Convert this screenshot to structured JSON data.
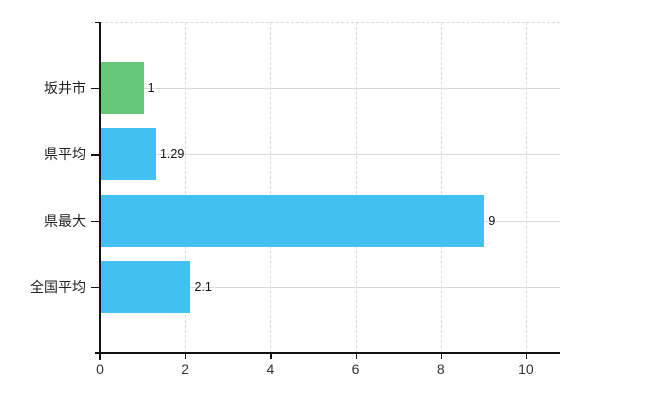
{
  "chart_data": {
    "type": "bar",
    "orientation": "horizontal",
    "title": "",
    "xlabel": "",
    "ylabel": "",
    "categories": [
      "坂井市",
      "県平均",
      "県最大",
      "全国平均"
    ],
    "values": [
      1,
      1.29,
      9,
      2.1
    ],
    "value_labels": [
      "1",
      "1.29",
      "9",
      "2.1"
    ],
    "bar_colors": [
      "#67c977",
      "#42c0f1",
      "#42c0f1",
      "#42c0f1"
    ],
    "xlim": [
      0,
      10.8
    ],
    "x_ticks": [
      0,
      2,
      4,
      6,
      8,
      10
    ],
    "x_tick_labels": [
      "0",
      "2",
      "4",
      "6",
      "8",
      "10"
    ],
    "grid": true,
    "legend": false,
    "colors": {
      "highlight_bar": "#67c977",
      "default_bar": "#42c0f1",
      "gridline": "#d9d9d9",
      "axis": "#111111"
    }
  }
}
